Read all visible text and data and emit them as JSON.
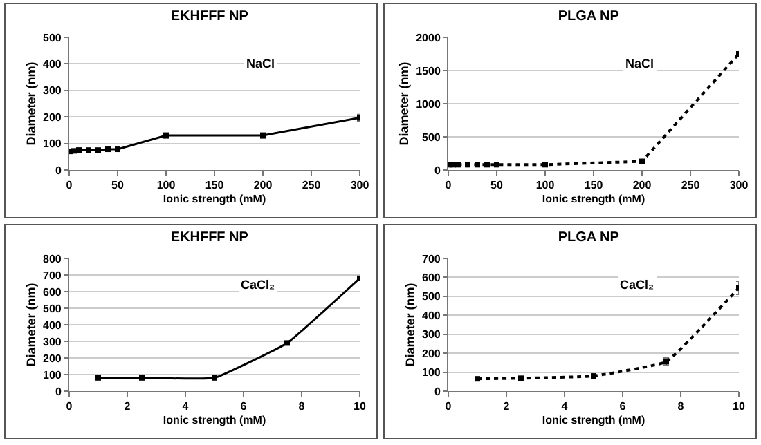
{
  "chart_data": [
    {
      "type": "line",
      "title": "EKHFFF NP",
      "xlabel": "Ionic strength (mM)",
      "ylabel": "Diameter (nm)",
      "annotations": [
        "NaCl"
      ],
      "x": [
        1,
        5,
        10,
        20,
        30,
        40,
        50,
        100,
        200,
        300
      ],
      "series": [
        {
          "color": "#000000",
          "values": [
            70,
            72,
            75,
            75,
            75,
            78,
            78,
            130,
            130,
            197
          ],
          "errors": [
            null,
            null,
            8,
            6,
            6,
            6,
            6,
            10,
            10,
            12
          ]
        }
      ],
      "xlim": [
        0,
        300
      ],
      "xticks": [
        0,
        50,
        100,
        150,
        200,
        250,
        300
      ],
      "ylim": [
        0,
        500
      ],
      "yticks": [
        0,
        100,
        200,
        300,
        400,
        500
      ],
      "grid": "y",
      "legend": false,
      "marker": "square",
      "line_style": "solid"
    },
    {
      "type": "line",
      "title": "PLGA NP",
      "xlabel": "Ionic strength (mM)",
      "ylabel": "Diameter (nm)",
      "annotations": [
        "NaCl"
      ],
      "x": [
        1,
        5,
        10,
        20,
        30,
        40,
        50,
        100,
        200,
        300
      ],
      "series": [
        {
          "color": "#000000",
          "values": [
            80,
            80,
            80,
            80,
            80,
            80,
            80,
            80,
            130,
            1750
          ]
        }
      ],
      "xlim": [
        0,
        300
      ],
      "xticks": [
        0,
        50,
        100,
        150,
        200,
        250,
        300
      ],
      "ylim": [
        0,
        2000
      ],
      "yticks": [
        0,
        500,
        1000,
        1500,
        2000
      ],
      "grid": "y",
      "legend": false,
      "marker": "square",
      "line_style": "dotted"
    },
    {
      "type": "line",
      "title": "EKHFFF NP",
      "xlabel": "Ionic strength (mM)",
      "ylabel": "Diameter (nm)",
      "annotations": [
        "CaCl₂"
      ],
      "x": [
        1,
        2.5,
        5,
        7.5,
        10
      ],
      "series": [
        {
          "color": "#000000",
          "values": [
            80,
            80,
            80,
            290,
            680
          ]
        }
      ],
      "xlim": [
        0,
        10
      ],
      "xticks": [
        0,
        2,
        4,
        6,
        8,
        10
      ],
      "ylim": [
        0,
        800
      ],
      "yticks": [
        0,
        100,
        200,
        300,
        400,
        500,
        600,
        700,
        800
      ],
      "grid": "y",
      "legend": false,
      "marker": "square",
      "line_style": "solid"
    },
    {
      "type": "line",
      "title": "PLGA NP",
      "xlabel": "Ionic strength (mM)",
      "ylabel": "Diameter (nm)",
      "annotations": [
        "CaCl₂"
      ],
      "x": [
        1,
        2.5,
        5,
        7.5,
        10
      ],
      "series": [
        {
          "color": "#000000",
          "values": [
            65,
            68,
            80,
            155,
            545
          ],
          "errors": [
            5,
            5,
            8,
            20,
            35
          ]
        }
      ],
      "xlim": [
        0,
        10
      ],
      "xticks": [
        0,
        2,
        4,
        6,
        8,
        10
      ],
      "ylim": [
        0,
        700
      ],
      "yticks": [
        0,
        100,
        200,
        300,
        400,
        500,
        600,
        700
      ],
      "grid": "y",
      "legend": false,
      "marker": "square",
      "line_style": "dotted"
    }
  ]
}
